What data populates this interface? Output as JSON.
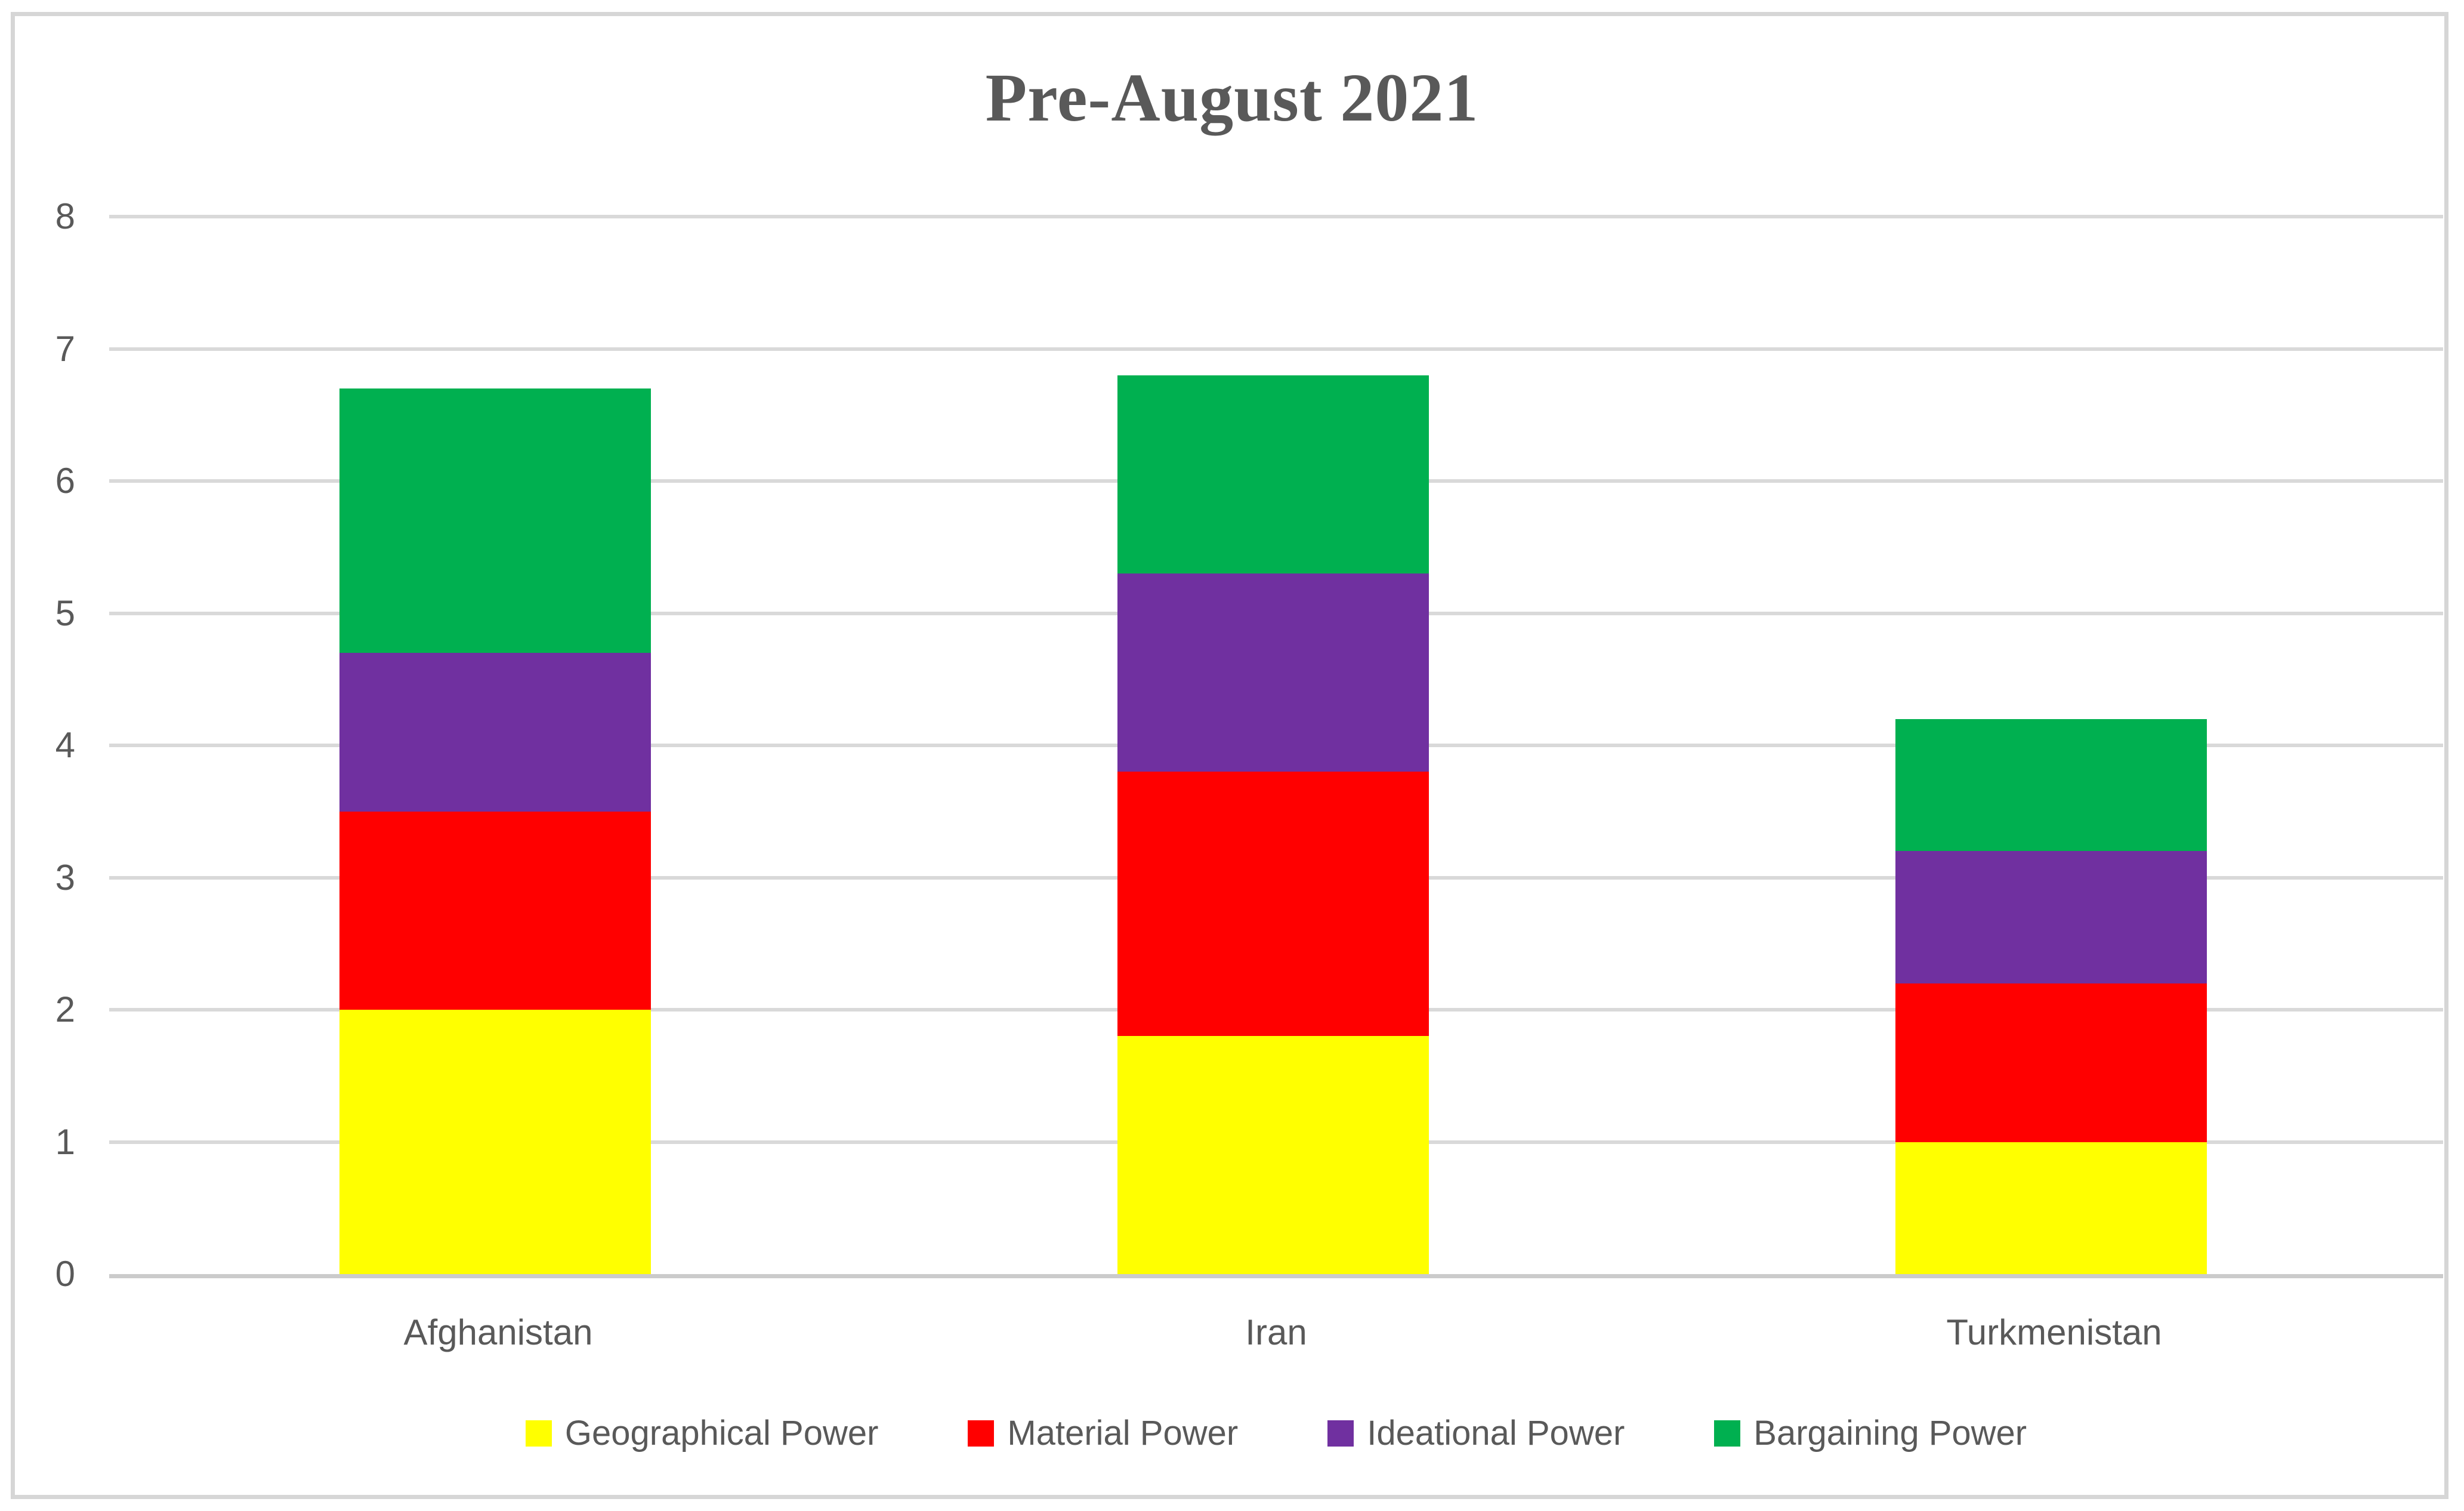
{
  "chart_data": {
    "type": "bar",
    "stacked": true,
    "title": "Pre-August 2021",
    "categories": [
      "Afghanistan",
      "Iran",
      "Turkmenistan"
    ],
    "series": [
      {
        "name": "Geographical Power",
        "color": "#FFFF00",
        "values": [
          2.0,
          1.8,
          1.0
        ]
      },
      {
        "name": "Material Power",
        "color": "#FF0000",
        "values": [
          1.5,
          2.0,
          1.2
        ]
      },
      {
        "name": "Ideational Power",
        "color": "#7030A0",
        "values": [
          1.2,
          1.5,
          1.0
        ]
      },
      {
        "name": "Bargaining Power",
        "color": "#00B050",
        "values": [
          2.0,
          1.5,
          1.0
        ]
      }
    ],
    "stack_totals": [
      6.7,
      6.8,
      4.2
    ],
    "xlabel": "",
    "ylabel": "",
    "ylim": [
      0,
      8
    ],
    "yticks": [
      0,
      1,
      2,
      3,
      4,
      5,
      6,
      7,
      8
    ],
    "grid": "horizontal",
    "legend_position": "bottom",
    "styles": {
      "text_color": "#595959",
      "gridline_color": "#d9d9d9",
      "axis_line_color": "#cbcbcb",
      "frame_color": "#d6d6d6",
      "background": "#ffffff"
    }
  }
}
